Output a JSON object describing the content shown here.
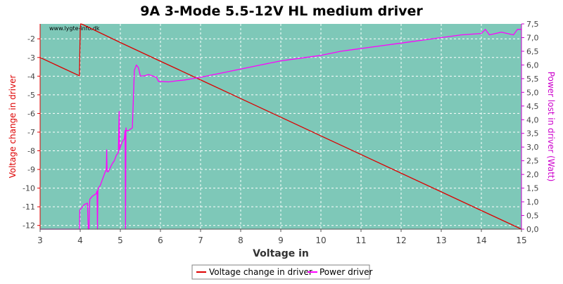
{
  "chart_data": {
    "type": "line",
    "title": "9A 3-Mode 5.5-12V HL medium driver",
    "watermark": "www.lygte-info.dk",
    "xlabel": "Voltage in",
    "ylabel_left": "Voltage change in driver",
    "ylabel_right": "Power lost in driver (Watt)",
    "xlim": [
      3,
      15
    ],
    "ylim_left": [
      -12.2,
      -1.2
    ],
    "ylim_right": [
      0,
      7.5
    ],
    "x_ticks": [
      "3",
      "4",
      "5",
      "6",
      "7",
      "8",
      "9",
      "10",
      "11",
      "12",
      "13",
      "14",
      "15"
    ],
    "y_left_ticks": [
      "-2",
      "-3",
      "-4",
      "-5",
      "-6",
      "-7",
      "-8",
      "-9",
      "-10",
      "-11",
      "-12"
    ],
    "y_right_ticks": [
      "0,0",
      "0,5",
      "1,0",
      "1,5",
      "2,0",
      "2,5",
      "3,0",
      "3,5",
      "4,0",
      "4,5",
      "5,0",
      "5,5",
      "6,0",
      "6,5",
      "7,0",
      "7,5"
    ],
    "grid": true,
    "legend_position": "bottom",
    "colors": {
      "plot_bg": "#7ec8b8",
      "voltage": "#dd0000",
      "power": "#ff00ff",
      "left_axis": "#dd0000",
      "right_axis": "#cc00cc",
      "grid": "#ffffff"
    },
    "series": [
      {
        "name": "Voltage change in driver",
        "axis": "left",
        "x": [
          3.0,
          3.5,
          3.98,
          4.0,
          4.01,
          4.05,
          5.0,
          6.0,
          7.0,
          8.0,
          9.0,
          10.0,
          11.0,
          12.0,
          13.0,
          14.0,
          15.0
        ],
        "y": [
          -3.0,
          -3.5,
          -3.98,
          -1.45,
          -1.2,
          -1.22,
          -2.2,
          -3.2,
          -4.2,
          -5.2,
          -6.2,
          -7.2,
          -8.2,
          -9.2,
          -10.2,
          -11.2,
          -12.2
        ]
      },
      {
        "name": "Power driver",
        "axis": "right",
        "x": [
          3.0,
          3.98,
          3.99,
          4.05,
          4.1,
          4.18,
          4.2,
          4.22,
          4.23,
          4.24,
          4.3,
          4.4,
          4.42,
          4.43,
          4.44,
          4.45,
          4.5,
          4.6,
          4.65,
          4.66,
          4.67,
          4.7,
          4.8,
          4.85,
          4.9,
          4.95,
          4.97,
          4.98,
          5.0,
          5.05,
          5.1,
          5.12,
          5.13,
          5.14,
          5.15,
          5.16,
          5.2,
          5.3,
          5.35,
          5.4,
          5.45,
          5.5,
          5.6,
          5.7,
          5.8,
          5.9,
          5.95,
          6.0,
          6.2,
          6.4,
          6.6,
          6.8,
          7.0,
          7.5,
          8.0,
          8.5,
          9.0,
          9.5,
          10.0,
          10.5,
          11.0,
          11.5,
          12.0,
          12.5,
          13.0,
          13.5,
          14.0,
          14.1,
          14.2,
          14.5,
          14.8,
          14.9,
          15.0
        ],
        "y": [
          0.0,
          0.0,
          0.7,
          0.8,
          0.9,
          0.95,
          0.0,
          0.0,
          0.9,
          1.1,
          1.2,
          1.3,
          1.4,
          0.0,
          1.4,
          1.5,
          1.6,
          2.0,
          2.2,
          2.9,
          2.1,
          2.1,
          2.4,
          2.5,
          2.7,
          2.8,
          4.3,
          2.9,
          3.0,
          3.2,
          3.3,
          3.6,
          0.0,
          3.7,
          3.6,
          3.6,
          3.6,
          3.7,
          5.8,
          6.0,
          5.9,
          5.6,
          5.6,
          5.65,
          5.6,
          5.55,
          5.4,
          5.4,
          5.38,
          5.42,
          5.45,
          5.5,
          5.55,
          5.7,
          5.85,
          6.0,
          6.15,
          6.25,
          6.35,
          6.5,
          6.6,
          6.7,
          6.8,
          6.9,
          7.0,
          7.1,
          7.15,
          7.3,
          7.1,
          7.2,
          7.1,
          7.3,
          7.3
        ]
      }
    ]
  }
}
